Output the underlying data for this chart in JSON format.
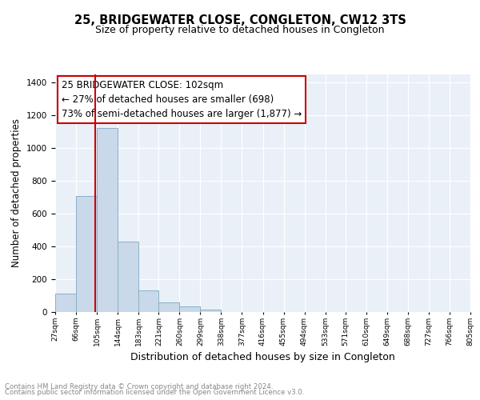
{
  "title": "25, BRIDGEWATER CLOSE, CONGLETON, CW12 3TS",
  "subtitle": "Size of property relative to detached houses in Congleton",
  "xlabel": "Distribution of detached houses by size in Congleton",
  "ylabel": "Number of detached properties",
  "bin_edges": [
    27,
    66,
    105,
    144,
    183,
    221,
    260,
    299,
    338,
    377,
    416,
    455,
    494,
    533,
    571,
    610,
    649,
    688,
    727,
    766,
    805
  ],
  "bar_heights": [
    110,
    705,
    1120,
    430,
    130,
    57,
    32,
    17,
    0,
    0,
    0,
    0,
    0,
    0,
    0,
    0,
    0,
    0,
    0,
    0
  ],
  "bar_color": "#c9d9ea",
  "bar_edge_color": "#8aafc8",
  "property_line_x": 102,
  "property_line_color": "#cc0000",
  "annotation_text": "25 BRIDGEWATER CLOSE: 102sqm\n← 27% of detached houses are smaller (698)\n73% of semi-detached houses are larger (1,877) →",
  "annotation_box_color": "#ffffff",
  "annotation_box_edge_color": "#cc0000",
  "ylim": [
    0,
    1450
  ],
  "yticks": [
    0,
    200,
    400,
    600,
    800,
    1000,
    1200,
    1400
  ],
  "tick_labels": [
    "27sqm",
    "66sqm",
    "105sqm",
    "144sqm",
    "183sqm",
    "221sqm",
    "260sqm",
    "299sqm",
    "338sqm",
    "377sqm",
    "416sqm",
    "455sqm",
    "494sqm",
    "533sqm",
    "571sqm",
    "610sqm",
    "649sqm",
    "688sqm",
    "727sqm",
    "766sqm",
    "805sqm"
  ],
  "background_color": "#eaf0f7",
  "grid_color": "#ffffff",
  "footer_line1": "Contains HM Land Registry data © Crown copyright and database right 2024.",
  "footer_line2": "Contains public sector information licensed under the Open Government Licence v3.0.",
  "title_fontsize": 10.5,
  "subtitle_fontsize": 9,
  "xlabel_fontsize": 9,
  "ylabel_fontsize": 8.5,
  "annotation_fontsize": 8.5,
  "footer_fontsize": 6.2
}
